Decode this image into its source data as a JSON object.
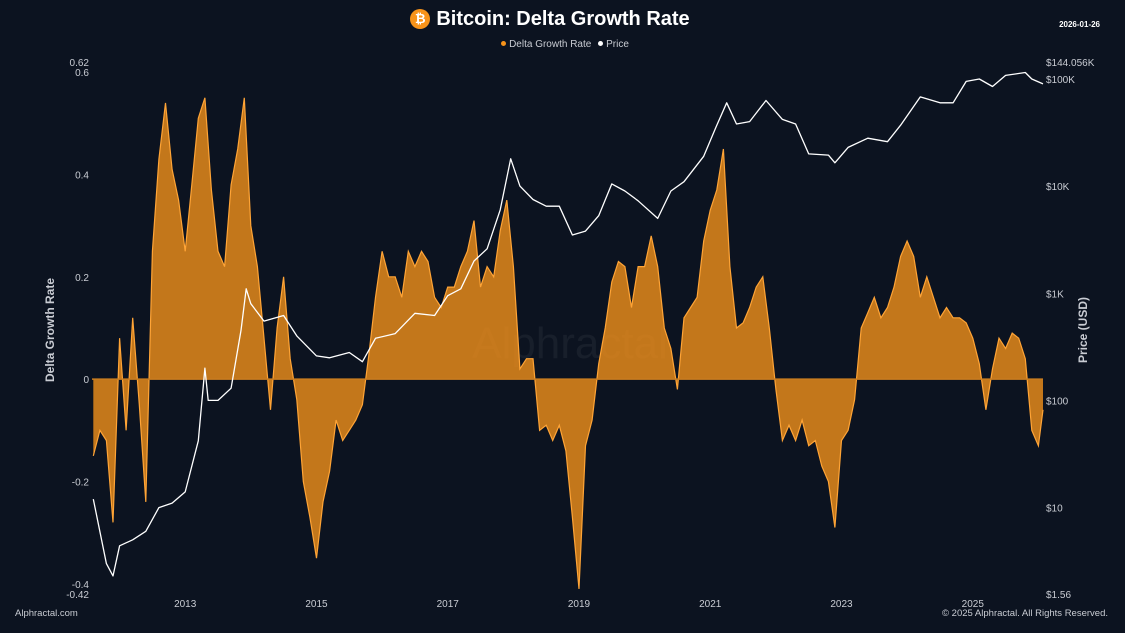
{
  "header": {
    "title": "Bitcoin: Delta Growth Rate",
    "coin_icon": "bitcoin-icon",
    "date": "2026-01-26"
  },
  "footer": {
    "left": "Alphractal.com",
    "right": "© 2025 Alphractal. All Rights Reserved."
  },
  "watermark": "Alphractal",
  "chart_data": {
    "type": "area+line",
    "title": "Bitcoin: Delta Growth Rate",
    "legend": {
      "placement": "top-center",
      "entries": [
        "Delta Growth Rate",
        "Price"
      ]
    },
    "colors": {
      "background": "#0c1320",
      "delta": "#f7931a",
      "price": "#ffffff"
    },
    "grid": false,
    "xaxis": {
      "label": "",
      "range": [
        2011.58,
        2026.07
      ],
      "ticks": [
        "2013",
        "2015",
        "2017",
        "2019",
        "2021",
        "2023",
        "2025"
      ],
      "tick_values": [
        2013,
        2015,
        2017,
        2019,
        2021,
        2023,
        2025
      ]
    },
    "yaxis_left": {
      "label": "Delta Growth Rate",
      "range": [
        -0.42,
        0.62
      ],
      "ticks": [
        "0.62",
        "0.6",
        "0.4",
        "0.2",
        "0",
        "-0.2",
        "-0.4",
        "-0.42"
      ],
      "tick_values": [
        0.62,
        0.6,
        0.4,
        0.2,
        0,
        -0.2,
        -0.4,
        -0.42
      ]
    },
    "yaxis_right": {
      "label": "Price (USD)",
      "scale": "log",
      "range": [
        1.56,
        144056
      ],
      "ticks": [
        "$144.056K",
        "$100K",
        "$10K",
        "$1K",
        "$100",
        "$10",
        "$1.56"
      ],
      "tick_values": [
        144056,
        100000,
        10000,
        1000,
        100,
        10,
        1.56
      ]
    },
    "series": [
      {
        "name": "Delta Growth Rate",
        "axis": "left",
        "points": [
          [
            2011.6,
            -0.15
          ],
          [
            2011.7,
            -0.1
          ],
          [
            2011.8,
            -0.12
          ],
          [
            2011.9,
            -0.28
          ],
          [
            2012.0,
            0.08
          ],
          [
            2012.1,
            -0.1
          ],
          [
            2012.2,
            0.12
          ],
          [
            2012.3,
            -0.05
          ],
          [
            2012.4,
            -0.24
          ],
          [
            2012.5,
            0.25
          ],
          [
            2012.6,
            0.43
          ],
          [
            2012.7,
            0.54
          ],
          [
            2012.8,
            0.41
          ],
          [
            2012.9,
            0.35
          ],
          [
            2013.0,
            0.25
          ],
          [
            2013.1,
            0.38
          ],
          [
            2013.2,
            0.51
          ],
          [
            2013.3,
            0.55
          ],
          [
            2013.4,
            0.37
          ],
          [
            2013.5,
            0.25
          ],
          [
            2013.6,
            0.22
          ],
          [
            2013.7,
            0.38
          ],
          [
            2013.8,
            0.45
          ],
          [
            2013.9,
            0.55
          ],
          [
            2014.0,
            0.3
          ],
          [
            2014.1,
            0.22
          ],
          [
            2014.2,
            0.08
          ],
          [
            2014.3,
            -0.06
          ],
          [
            2014.4,
            0.1
          ],
          [
            2014.5,
            0.2
          ],
          [
            2014.6,
            0.04
          ],
          [
            2014.7,
            -0.04
          ],
          [
            2014.8,
            -0.2
          ],
          [
            2014.9,
            -0.27
          ],
          [
            2015.0,
            -0.35
          ],
          [
            2015.1,
            -0.24
          ],
          [
            2015.2,
            -0.18
          ],
          [
            2015.3,
            -0.08
          ],
          [
            2015.4,
            -0.12
          ],
          [
            2015.5,
            -0.1
          ],
          [
            2015.6,
            -0.08
          ],
          [
            2015.7,
            -0.05
          ],
          [
            2015.8,
            0.05
          ],
          [
            2015.9,
            0.16
          ],
          [
            2016.0,
            0.25
          ],
          [
            2016.1,
            0.2
          ],
          [
            2016.2,
            0.2
          ],
          [
            2016.3,
            0.16
          ],
          [
            2016.4,
            0.25
          ],
          [
            2016.5,
            0.22
          ],
          [
            2016.6,
            0.25
          ],
          [
            2016.7,
            0.23
          ],
          [
            2016.8,
            0.16
          ],
          [
            2016.9,
            0.14
          ],
          [
            2017.0,
            0.18
          ],
          [
            2017.1,
            0.18
          ],
          [
            2017.2,
            0.22
          ],
          [
            2017.3,
            0.25
          ],
          [
            2017.4,
            0.31
          ],
          [
            2017.5,
            0.18
          ],
          [
            2017.6,
            0.22
          ],
          [
            2017.7,
            0.2
          ],
          [
            2017.8,
            0.29
          ],
          [
            2017.9,
            0.35
          ],
          [
            2018.0,
            0.22
          ],
          [
            2018.1,
            0.02
          ],
          [
            2018.2,
            0.04
          ],
          [
            2018.3,
            0.04
          ],
          [
            2018.4,
            -0.1
          ],
          [
            2018.5,
            -0.09
          ],
          [
            2018.6,
            -0.12
          ],
          [
            2018.7,
            -0.09
          ],
          [
            2018.8,
            -0.14
          ],
          [
            2018.9,
            -0.27
          ],
          [
            2019.0,
            -0.41
          ],
          [
            2019.1,
            -0.13
          ],
          [
            2019.2,
            -0.08
          ],
          [
            2019.3,
            0.03
          ],
          [
            2019.4,
            0.1
          ],
          [
            2019.5,
            0.19
          ],
          [
            2019.6,
            0.23
          ],
          [
            2019.7,
            0.22
          ],
          [
            2019.8,
            0.14
          ],
          [
            2019.9,
            0.22
          ],
          [
            2020.0,
            0.22
          ],
          [
            2020.1,
            0.28
          ],
          [
            2020.2,
            0.22
          ],
          [
            2020.3,
            0.1
          ],
          [
            2020.4,
            0.06
          ],
          [
            2020.5,
            -0.02
          ],
          [
            2020.6,
            0.12
          ],
          [
            2020.7,
            0.14
          ],
          [
            2020.8,
            0.16
          ],
          [
            2020.9,
            0.27
          ],
          [
            2021.0,
            0.33
          ],
          [
            2021.1,
            0.37
          ],
          [
            2021.2,
            0.45
          ],
          [
            2021.3,
            0.22
          ],
          [
            2021.4,
            0.1
          ],
          [
            2021.5,
            0.11
          ],
          [
            2021.6,
            0.14
          ],
          [
            2021.7,
            0.18
          ],
          [
            2021.8,
            0.2
          ],
          [
            2021.9,
            0.1
          ],
          [
            2022.0,
            -0.02
          ],
          [
            2022.1,
            -0.12
          ],
          [
            2022.2,
            -0.09
          ],
          [
            2022.3,
            -0.12
          ],
          [
            2022.4,
            -0.08
          ],
          [
            2022.5,
            -0.13
          ],
          [
            2022.6,
            -0.12
          ],
          [
            2022.7,
            -0.17
          ],
          [
            2022.8,
            -0.2
          ],
          [
            2022.9,
            -0.29
          ],
          [
            2023.0,
            -0.12
          ],
          [
            2023.1,
            -0.1
          ],
          [
            2023.2,
            -0.04
          ],
          [
            2023.3,
            0.1
          ],
          [
            2023.4,
            0.13
          ],
          [
            2023.5,
            0.16
          ],
          [
            2023.6,
            0.12
          ],
          [
            2023.7,
            0.14
          ],
          [
            2023.8,
            0.18
          ],
          [
            2023.9,
            0.24
          ],
          [
            2024.0,
            0.27
          ],
          [
            2024.1,
            0.24
          ],
          [
            2024.2,
            0.16
          ],
          [
            2024.3,
            0.2
          ],
          [
            2024.4,
            0.16
          ],
          [
            2024.5,
            0.12
          ],
          [
            2024.6,
            0.14
          ],
          [
            2024.7,
            0.12
          ],
          [
            2024.8,
            0.12
          ],
          [
            2024.9,
            0.11
          ],
          [
            2025.0,
            0.08
          ],
          [
            2025.1,
            0.03
          ],
          [
            2025.2,
            -0.06
          ],
          [
            2025.3,
            0.02
          ],
          [
            2025.4,
            0.08
          ],
          [
            2025.5,
            0.06
          ],
          [
            2025.6,
            0.09
          ],
          [
            2025.7,
            0.08
          ],
          [
            2025.8,
            0.04
          ],
          [
            2025.9,
            -0.1
          ],
          [
            2026.0,
            -0.13
          ],
          [
            2026.07,
            -0.06
          ]
        ]
      },
      {
        "name": "Price",
        "axis": "right",
        "points": [
          [
            2011.6,
            12
          ],
          [
            2011.8,
            3
          ],
          [
            2011.9,
            2.3
          ],
          [
            2012.0,
            4.4
          ],
          [
            2012.2,
            5
          ],
          [
            2012.4,
            6
          ],
          [
            2012.6,
            10
          ],
          [
            2012.8,
            11
          ],
          [
            2013.0,
            14
          ],
          [
            2013.2,
            42
          ],
          [
            2013.3,
            200
          ],
          [
            2013.35,
            100
          ],
          [
            2013.5,
            100
          ],
          [
            2013.7,
            130
          ],
          [
            2013.85,
            450
          ],
          [
            2013.93,
            1100
          ],
          [
            2014.0,
            800
          ],
          [
            2014.2,
            550
          ],
          [
            2014.5,
            620
          ],
          [
            2014.7,
            400
          ],
          [
            2015.0,
            260
          ],
          [
            2015.2,
            250
          ],
          [
            2015.5,
            280
          ],
          [
            2015.7,
            230
          ],
          [
            2015.9,
            380
          ],
          [
            2016.2,
            420
          ],
          [
            2016.5,
            650
          ],
          [
            2016.8,
            620
          ],
          [
            2017.0,
            950
          ],
          [
            2017.2,
            1100
          ],
          [
            2017.4,
            2000
          ],
          [
            2017.6,
            2600
          ],
          [
            2017.8,
            6000
          ],
          [
            2017.96,
            18000
          ],
          [
            2018.1,
            10000
          ],
          [
            2018.3,
            7500
          ],
          [
            2018.5,
            6500
          ],
          [
            2018.7,
            6500
          ],
          [
            2018.9,
            3500
          ],
          [
            2019.1,
            3800
          ],
          [
            2019.3,
            5300
          ],
          [
            2019.5,
            10500
          ],
          [
            2019.7,
            9000
          ],
          [
            2019.9,
            7300
          ],
          [
            2020.2,
            5000
          ],
          [
            2020.4,
            9000
          ],
          [
            2020.6,
            11000
          ],
          [
            2020.9,
            19000
          ],
          [
            2021.1,
            37000
          ],
          [
            2021.25,
            60000
          ],
          [
            2021.4,
            38000
          ],
          [
            2021.6,
            40000
          ],
          [
            2021.85,
            63000
          ],
          [
            2022.1,
            42000
          ],
          [
            2022.3,
            38000
          ],
          [
            2022.5,
            20000
          ],
          [
            2022.8,
            19500
          ],
          [
            2022.9,
            16500
          ],
          [
            2023.1,
            23000
          ],
          [
            2023.4,
            28000
          ],
          [
            2023.7,
            26000
          ],
          [
            2023.9,
            37000
          ],
          [
            2024.2,
            68000
          ],
          [
            2024.5,
            60000
          ],
          [
            2024.7,
            60000
          ],
          [
            2024.9,
            95000
          ],
          [
            2025.1,
            100000
          ],
          [
            2025.3,
            85000
          ],
          [
            2025.5,
            108000
          ],
          [
            2025.8,
            115000
          ],
          [
            2025.9,
            100000
          ],
          [
            2026.07,
            90000
          ]
        ]
      }
    ]
  }
}
